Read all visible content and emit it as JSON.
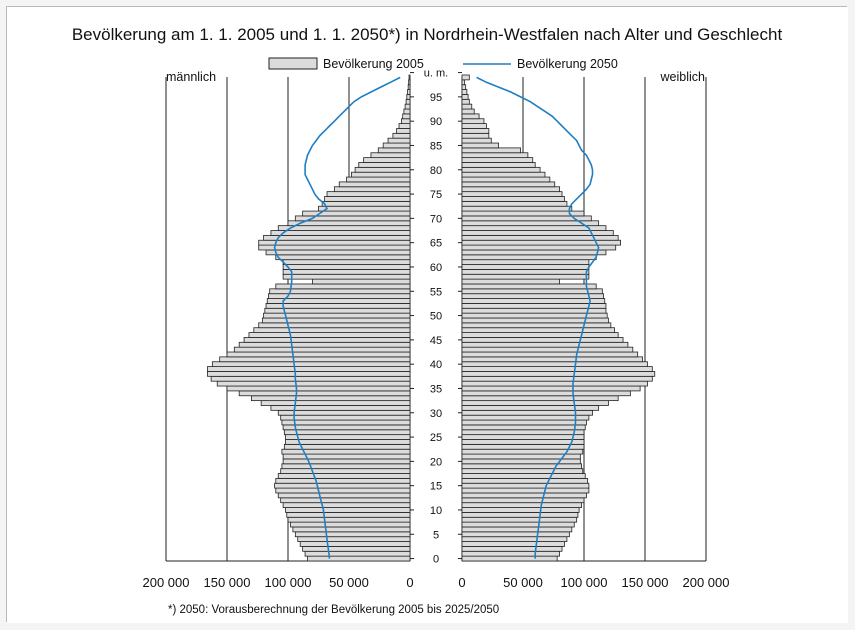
{
  "chart_data": {
    "type": "bar",
    "orientation": "horizontal",
    "title": "Bevölkerung am 1. 1. 2005 und 1. 1. 2050*) in Nordrhein-Westfalen nach Alter und Geschlecht",
    "left_label": "männlich",
    "right_label": "weiblich",
    "footnote": "*) 2050: Vorausberechnung der Bevölkerung 2005 bis 2025/2050",
    "legend": {
      "bar": "Bevölkerung 2005",
      "line": "Bevölkerung 2050"
    },
    "x_ticks": [
      "200 000",
      "150 000",
      "100 000",
      "50 000",
      "0"
    ],
    "x_ticks_right": [
      "0",
      "50 000",
      "100 000",
      "150 000",
      "200 000"
    ],
    "xlim": [
      0,
      200000
    ],
    "age_labels": [
      "0",
      "5",
      "10",
      "15",
      "20",
      "25",
      "30",
      "35",
      "40",
      "45",
      "50",
      "55",
      "60",
      "65",
      "70",
      "75",
      "80",
      "85",
      "90",
      "95",
      "u. m."
    ],
    "ages": [
      0,
      1,
      2,
      3,
      4,
      5,
      6,
      7,
      8,
      9,
      10,
      11,
      12,
      13,
      14,
      15,
      16,
      17,
      18,
      19,
      20,
      21,
      22,
      23,
      24,
      25,
      26,
      27,
      28,
      29,
      30,
      31,
      32,
      33,
      34,
      35,
      36,
      37,
      38,
      39,
      40,
      41,
      42,
      43,
      44,
      45,
      46,
      47,
      48,
      49,
      50,
      51,
      52,
      53,
      54,
      55,
      56,
      57,
      58,
      59,
      60,
      61,
      62,
      63,
      64,
      65,
      66,
      67,
      68,
      69,
      70,
      71,
      72,
      73,
      74,
      75,
      76,
      77,
      78,
      79,
      80,
      81,
      82,
      83,
      84,
      85,
      86,
      87,
      88,
      89,
      90,
      91,
      92,
      93,
      94,
      95,
      96,
      97,
      98,
      99
    ],
    "series": [
      {
        "name": "Bevölkerung 2005",
        "side": "männlich",
        "values": [
          84000,
          86000,
          88000,
          90000,
          92000,
          94000,
          96000,
          98000,
          100000,
          101000,
          102000,
          104000,
          106000,
          108000,
          110000,
          111000,
          110000,
          108000,
          106000,
          105000,
          104000,
          104000,
          105000,
          103000,
          102000,
          102000,
          103000,
          104000,
          105000,
          106000,
          108000,
          114000,
          122000,
          130000,
          140000,
          150000,
          158000,
          163000,
          166000,
          166000,
          162000,
          156000,
          150000,
          144000,
          140000,
          136000,
          132000,
          128000,
          124000,
          121000,
          120000,
          119000,
          118000,
          117000,
          116000,
          115000,
          110000,
          80000,
          104000,
          104000,
          104000,
          104000,
          110000,
          118000,
          124000,
          124000,
          120000,
          114000,
          108000,
          100000,
          94000,
          88000,
          75000,
          72000,
          70000,
          68000,
          62000,
          58000,
          52000,
          48000,
          45000,
          42000,
          38000,
          32000,
          26000,
          22000,
          18000,
          14000,
          11000,
          9000,
          7000,
          6000,
          5000,
          4000,
          3200,
          2600,
          2000,
          1500,
          1100,
          800
        ]
      },
      {
        "name": "Bevölkerung 2005",
        "side": "weiblich",
        "values": [
          78000,
          80000,
          82000,
          84000,
          86000,
          88000,
          90000,
          92000,
          94000,
          95000,
          96000,
          98000,
          100000,
          102000,
          104000,
          104000,
          103000,
          101000,
          99000,
          98000,
          97000,
          97000,
          99000,
          100000,
          100000,
          100000,
          100000,
          101000,
          102000,
          104000,
          107000,
          112000,
          120000,
          128000,
          138000,
          146000,
          152000,
          156000,
          158000,
          156000,
          152000,
          148000,
          144000,
          140000,
          136000,
          132000,
          128000,
          125000,
          122000,
          120000,
          119000,
          118000,
          118000,
          117000,
          116000,
          115000,
          110000,
          80000,
          104000,
          104000,
          104000,
          104000,
          110000,
          118000,
          126000,
          130000,
          128000,
          124000,
          118000,
          112000,
          106000,
          100000,
          90000,
          86000,
          84000,
          82000,
          80000,
          76000,
          72000,
          68000,
          64000,
          60000,
          58000,
          54000,
          48000,
          30000,
          24000,
          22000,
          22000,
          20000,
          18000,
          14000,
          10000,
          8000,
          6000,
          5000,
          4000,
          3000,
          2000,
          6000
        ]
      },
      {
        "name": "Bevölkerung 2050",
        "side": "männlich",
        "values": [
          66000,
          66500,
          67000,
          67500,
          68000,
          68500,
          69000,
          69500,
          70000,
          70500,
          71000,
          72000,
          73000,
          74000,
          75000,
          76000,
          77000,
          78500,
          80000,
          81500,
          83000,
          85000,
          87000,
          89000,
          91000,
          92000,
          93000,
          94000,
          94500,
          95000,
          95000,
          94500,
          94000,
          93500,
          93000,
          93000,
          93500,
          94000,
          94000,
          94500,
          95000,
          95500,
          96000,
          96500,
          97000,
          97500,
          98000,
          99000,
          100000,
          101000,
          102000,
          103000,
          104000,
          104000,
          100000,
          98000,
          97500,
          97000,
          97000,
          97000,
          100000,
          104000,
          108000,
          110000,
          111000,
          110000,
          108000,
          104000,
          98000,
          90000,
          80000,
          74000,
          68000,
          70000,
          75000,
          78000,
          80000,
          82000,
          84000,
          86000,
          86000,
          86000,
          85000,
          84000,
          82000,
          80000,
          77000,
          74000,
          70000,
          66000,
          62000,
          58000,
          54000,
          50000,
          46000,
          40000,
          32000,
          24000,
          16000,
          8000
        ]
      },
      {
        "name": "Bevölkerung 2050",
        "side": "weiblich",
        "values": [
          60000,
          60000,
          60500,
          61000,
          61500,
          62000,
          62500,
          63000,
          63500,
          64000,
          64500,
          65000,
          66000,
          67000,
          68000,
          69000,
          71000,
          73000,
          75000,
          77000,
          80000,
          83000,
          86000,
          88000,
          90000,
          91000,
          92000,
          92500,
          93000,
          93000,
          93000,
          92500,
          92000,
          91500,
          91000,
          91000,
          91000,
          91500,
          92000,
          92500,
          93000,
          93500,
          94000,
          95000,
          96000,
          97000,
          98000,
          99000,
          100000,
          101000,
          102000,
          103000,
          104000,
          105000,
          104000,
          103000,
          102000,
          102000,
          102000,
          102000,
          104000,
          107000,
          110000,
          111000,
          112000,
          110000,
          108000,
          106000,
          104000,
          98000,
          92000,
          88000,
          88000,
          90000,
          94000,
          98000,
          102000,
          105000,
          106000,
          107000,
          107000,
          106000,
          104000,
          102000,
          98000,
          96000,
          94000,
          90000,
          86000,
          82000,
          78000,
          74000,
          68000,
          62000,
          56000,
          48000,
          40000,
          30000,
          20000,
          12000
        ]
      }
    ]
  }
}
